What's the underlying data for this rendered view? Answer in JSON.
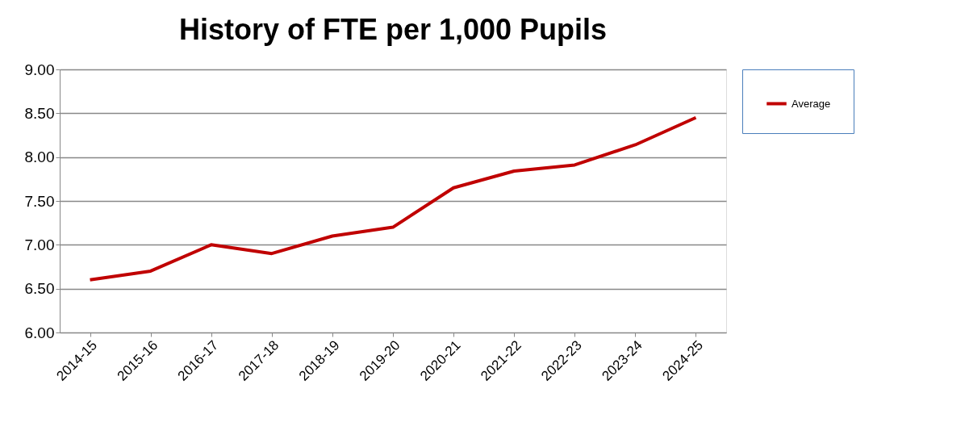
{
  "chart_data": {
    "type": "line",
    "title": "History of FTE per 1,000 Pupils",
    "categories": [
      "2014-15",
      "2015-16",
      "2016-17",
      "2017-18",
      "2018-19",
      "2019-20",
      "2020-21",
      "2021-22",
      "2022-23",
      "2023-24",
      "2024-25"
    ],
    "series": [
      {
        "name": "Average",
        "color": "#c00000",
        "values": [
          6.6,
          6.7,
          7.0,
          6.9,
          7.1,
          7.2,
          7.65,
          7.84,
          7.91,
          8.14,
          8.45
        ]
      }
    ],
    "ylim": [
      6,
      9
    ],
    "yticks": [
      {
        "value": 6,
        "label": "6.00"
      },
      {
        "value": 6.5,
        "label": "6.50"
      },
      {
        "value": 7,
        "label": "7.00"
      },
      {
        "value": 7.5,
        "label": "7.50"
      },
      {
        "value": 8,
        "label": "8.00"
      },
      {
        "value": 8.5,
        "label": "8.50"
      },
      {
        "value": 9,
        "label": "9.00"
      }
    ],
    "grid": "y",
    "legend": "right",
    "marker": "none",
    "line_style": "solid"
  }
}
